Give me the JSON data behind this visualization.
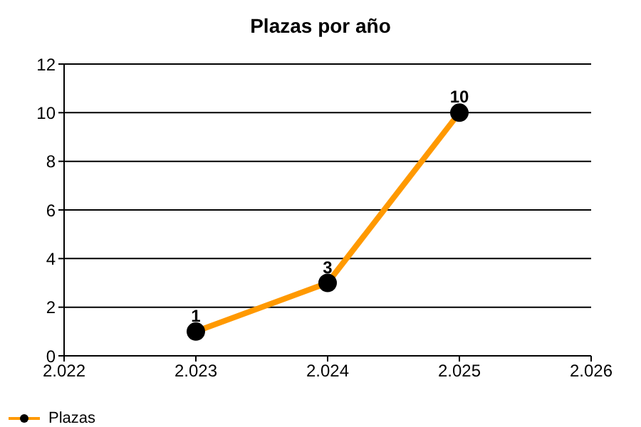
{
  "chart_data": {
    "type": "line",
    "title": "Plazas por año",
    "x": [
      2023,
      2024,
      2025
    ],
    "series": [
      {
        "name": "Plazas",
        "color": "#ff9900",
        "values": [
          1,
          3,
          10
        ]
      }
    ],
    "xlim": [
      2022,
      2026
    ],
    "xticks": [
      {
        "value": 2022,
        "label": "2.022"
      },
      {
        "value": 2023,
        "label": "2.023"
      },
      {
        "value": 2024,
        "label": "2.024"
      },
      {
        "value": 2025,
        "label": "2.025"
      },
      {
        "value": 2026,
        "label": "2.026"
      }
    ],
    "ylim": [
      0,
      12
    ],
    "yticks": [
      0,
      2,
      4,
      6,
      8,
      10,
      12
    ],
    "grid": "y",
    "legend": "bottom left",
    "marker": "circle",
    "line_style": "solid",
    "data_labels": true
  }
}
